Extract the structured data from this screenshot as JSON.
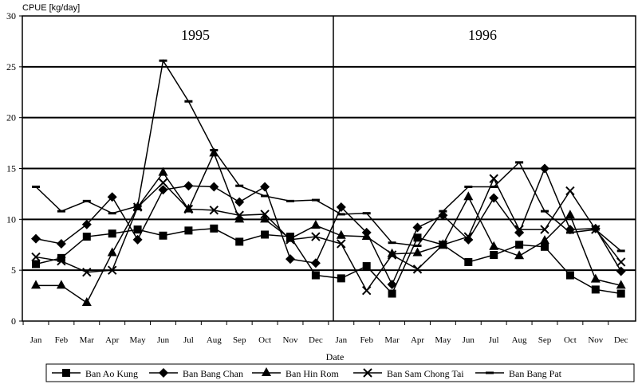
{
  "chart_data": {
    "type": "line",
    "ylabel": "CPUE [kg/day]",
    "xlabel": "Date",
    "ylim": [
      0,
      30
    ],
    "yticks": [
      0,
      5,
      10,
      15,
      20,
      25,
      30
    ],
    "grid": true,
    "legend": "bottom",
    "period_labels": [
      "1995",
      "1996"
    ],
    "categories": [
      "Jan",
      "Feb",
      "Mar",
      "Apr",
      "May",
      "Jun",
      "Jul",
      "Aug",
      "Sep",
      "Oct",
      "Nov",
      "Dec",
      "Jan",
      "Feb",
      "Mar",
      "Apr",
      "May",
      "Jun",
      "Jul",
      "Aug",
      "Sep",
      "Oct",
      "Nov",
      "Dec"
    ],
    "series": [
      {
        "name": "Ban Ao Kung",
        "marker": "square",
        "values": [
          5.6,
          6.2,
          8.3,
          8.6,
          9.0,
          8.4,
          8.9,
          9.1,
          7.8,
          8.5,
          8.3,
          4.5,
          4.2,
          5.4,
          2.7,
          8.2,
          7.5,
          5.8,
          6.5,
          7.5,
          7.3,
          4.5,
          3.1,
          2.7
        ]
      },
      {
        "name": "Ban Bang Chan",
        "marker": "diamond",
        "values": [
          8.1,
          7.6,
          9.5,
          12.2,
          8.0,
          12.9,
          13.3,
          13.2,
          11.7,
          13.2,
          6.1,
          5.7,
          11.2,
          8.7,
          3.6,
          9.2,
          10.4,
          8.0,
          12.1,
          8.7,
          15.0,
          9.0,
          9.1,
          4.9
        ]
      },
      {
        "name": "Ban Hin Rom",
        "marker": "triangle",
        "values": [
          3.5,
          3.5,
          1.8,
          6.7,
          11.2,
          14.6,
          11.0,
          16.5,
          10.0,
          10.0,
          8.1,
          9.4,
          8.4,
          8.3,
          6.6,
          6.7,
          7.5,
          12.2,
          7.3,
          6.4,
          7.9,
          10.4,
          4.1,
          3.5
        ]
      },
      {
        "name": "Ban Sam Chong Tai",
        "marker": "x",
        "values": [
          6.3,
          5.9,
          4.8,
          5.0,
          11.2,
          13.6,
          11.0,
          10.9,
          10.4,
          10.5,
          8.0,
          8.3,
          7.6,
          3.0,
          6.5,
          5.1,
          7.5,
          8.3,
          14.0,
          9.0,
          9.0,
          12.8,
          9.0,
          5.8
        ]
      },
      {
        "name": "Ban Bang Pat",
        "marker": "dash",
        "values": [
          13.2,
          10.8,
          11.8,
          10.6,
          11.3,
          25.6,
          21.6,
          16.8,
          13.3,
          12.3,
          11.8,
          11.9,
          10.5,
          10.6,
          7.7,
          7.4,
          10.8,
          13.2,
          13.2,
          15.6,
          10.8,
          8.7,
          9.0,
          6.9
        ]
      }
    ]
  }
}
